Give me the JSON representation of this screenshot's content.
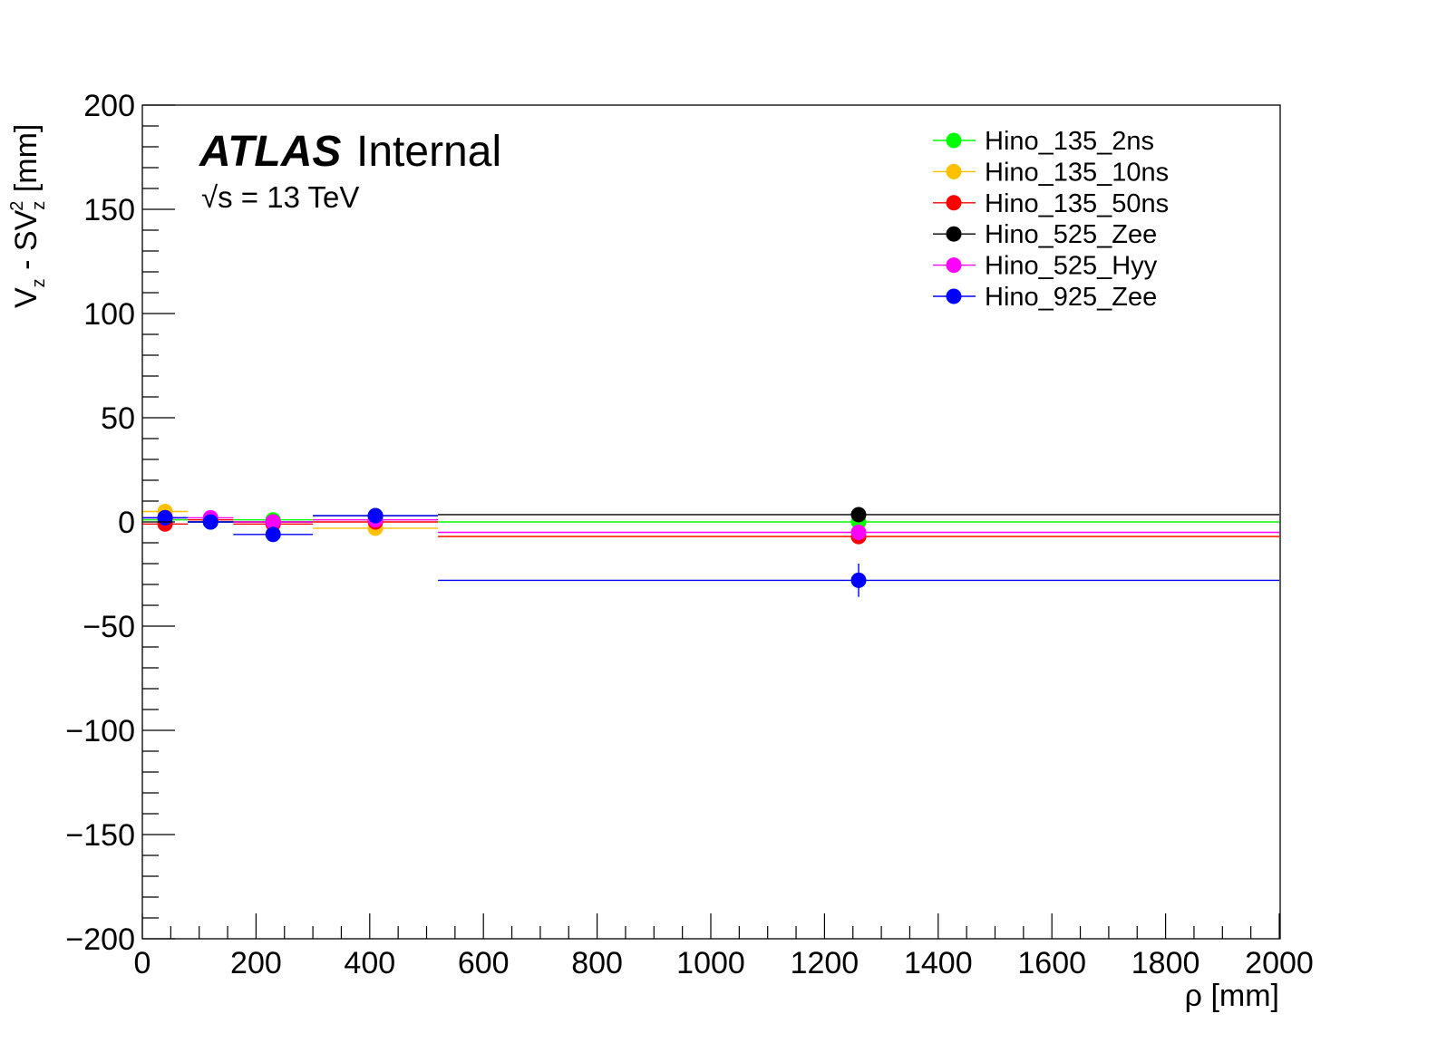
{
  "chart_data": {
    "type": "scatter",
    "title": "",
    "experiment_label": "ATLAS",
    "experiment_status": "Internal",
    "energy_label": "√s = 13 TeV",
    "xlabel": "ρ [mm]",
    "ylabel": "V_z - SV_z^2 [mm]",
    "xlim": [
      0,
      2000
    ],
    "ylim": [
      -200,
      200
    ],
    "x_ticks": [
      0,
      200,
      400,
      600,
      800,
      1000,
      1200,
      1400,
      1600,
      1800,
      2000
    ],
    "x_tick_labels": [
      "0",
      "200",
      "400",
      "600",
      "800",
      "1000",
      "1200",
      "1400",
      "1600",
      "1800",
      "2000"
    ],
    "y_ticks": [
      200,
      150,
      100,
      50,
      0,
      -50,
      -100,
      -150,
      -200
    ],
    "y_tick_labels": [
      "200",
      "150",
      "100",
      "50",
      "0",
      "−50",
      "−100",
      "−150",
      "−200"
    ],
    "grid": false,
    "legend_position": "top-right",
    "series": [
      {
        "name": "Hino_135_2ns",
        "color": "#00ff00",
        "points": [
          {
            "x": 40,
            "xlo": 0,
            "xhi": 80,
            "y": 1
          },
          {
            "x": 120,
            "xlo": 80,
            "xhi": 160,
            "y": 0
          },
          {
            "x": 230,
            "xlo": 160,
            "xhi": 300,
            "y": 1
          },
          {
            "x": 410,
            "xlo": 300,
            "xhi": 520,
            "y": 1
          },
          {
            "x": 1260,
            "xlo": 520,
            "xhi": 2000,
            "y": 0
          }
        ]
      },
      {
        "name": "Hino_135_10ns",
        "color": "#ffc000",
        "points": [
          {
            "x": 40,
            "xlo": 0,
            "xhi": 80,
            "y": 5
          },
          {
            "x": 120,
            "xlo": 80,
            "xhi": 160,
            "y": 1
          },
          {
            "x": 230,
            "xlo": 160,
            "xhi": 300,
            "y": 0
          },
          {
            "x": 410,
            "xlo": 300,
            "xhi": 520,
            "y": -3
          },
          {
            "x": 1260,
            "xlo": 520,
            "xhi": 2000,
            "y": -7
          }
        ]
      },
      {
        "name": "Hino_135_50ns",
        "color": "#ff0000",
        "points": [
          {
            "x": 40,
            "xlo": 0,
            "xhi": 80,
            "y": -1
          },
          {
            "x": 120,
            "xlo": 80,
            "xhi": 160,
            "y": 1
          },
          {
            "x": 230,
            "xlo": 160,
            "xhi": 300,
            "y": -1
          },
          {
            "x": 410,
            "xlo": 300,
            "xhi": 520,
            "y": 0
          },
          {
            "x": 1260,
            "xlo": 520,
            "xhi": 2000,
            "y": -7
          }
        ]
      },
      {
        "name": "Hino_525_Zee",
        "color": "#000000",
        "points": [
          {
            "x": 40,
            "xlo": 0,
            "xhi": 80,
            "y": 2
          },
          {
            "x": 120,
            "xlo": 80,
            "xhi": 160,
            "y": 0
          },
          {
            "x": 230,
            "xlo": 160,
            "xhi": 300,
            "y": 0
          },
          {
            "x": 410,
            "xlo": 300,
            "xhi": 520,
            "y": 3
          },
          {
            "x": 1260,
            "xlo": 520,
            "xhi": 2000,
            "y": 3.5
          }
        ]
      },
      {
        "name": "Hino_525_Hyy",
        "color": "#ff00ff",
        "points": [
          {
            "x": 40,
            "xlo": 0,
            "xhi": 80,
            "y": 2
          },
          {
            "x": 120,
            "xlo": 80,
            "xhi": 160,
            "y": 2
          },
          {
            "x": 230,
            "xlo": 160,
            "xhi": 300,
            "y": 0
          },
          {
            "x": 410,
            "xlo": 300,
            "xhi": 520,
            "y": 1
          },
          {
            "x": 1260,
            "xlo": 520,
            "xhi": 2000,
            "y": -5
          }
        ]
      },
      {
        "name": "Hino_925_Zee",
        "color": "#0000ff",
        "points": [
          {
            "x": 40,
            "xlo": 0,
            "xhi": 80,
            "y": 2
          },
          {
            "x": 120,
            "xlo": 80,
            "xhi": 160,
            "y": 0
          },
          {
            "x": 230,
            "xlo": 160,
            "xhi": 300,
            "y": -6
          },
          {
            "x": 410,
            "xlo": 300,
            "xhi": 520,
            "y": 3
          },
          {
            "x": 1260,
            "xlo": 520,
            "xhi": 2000,
            "y": -28,
            "yerr": 8
          }
        ]
      }
    ]
  }
}
